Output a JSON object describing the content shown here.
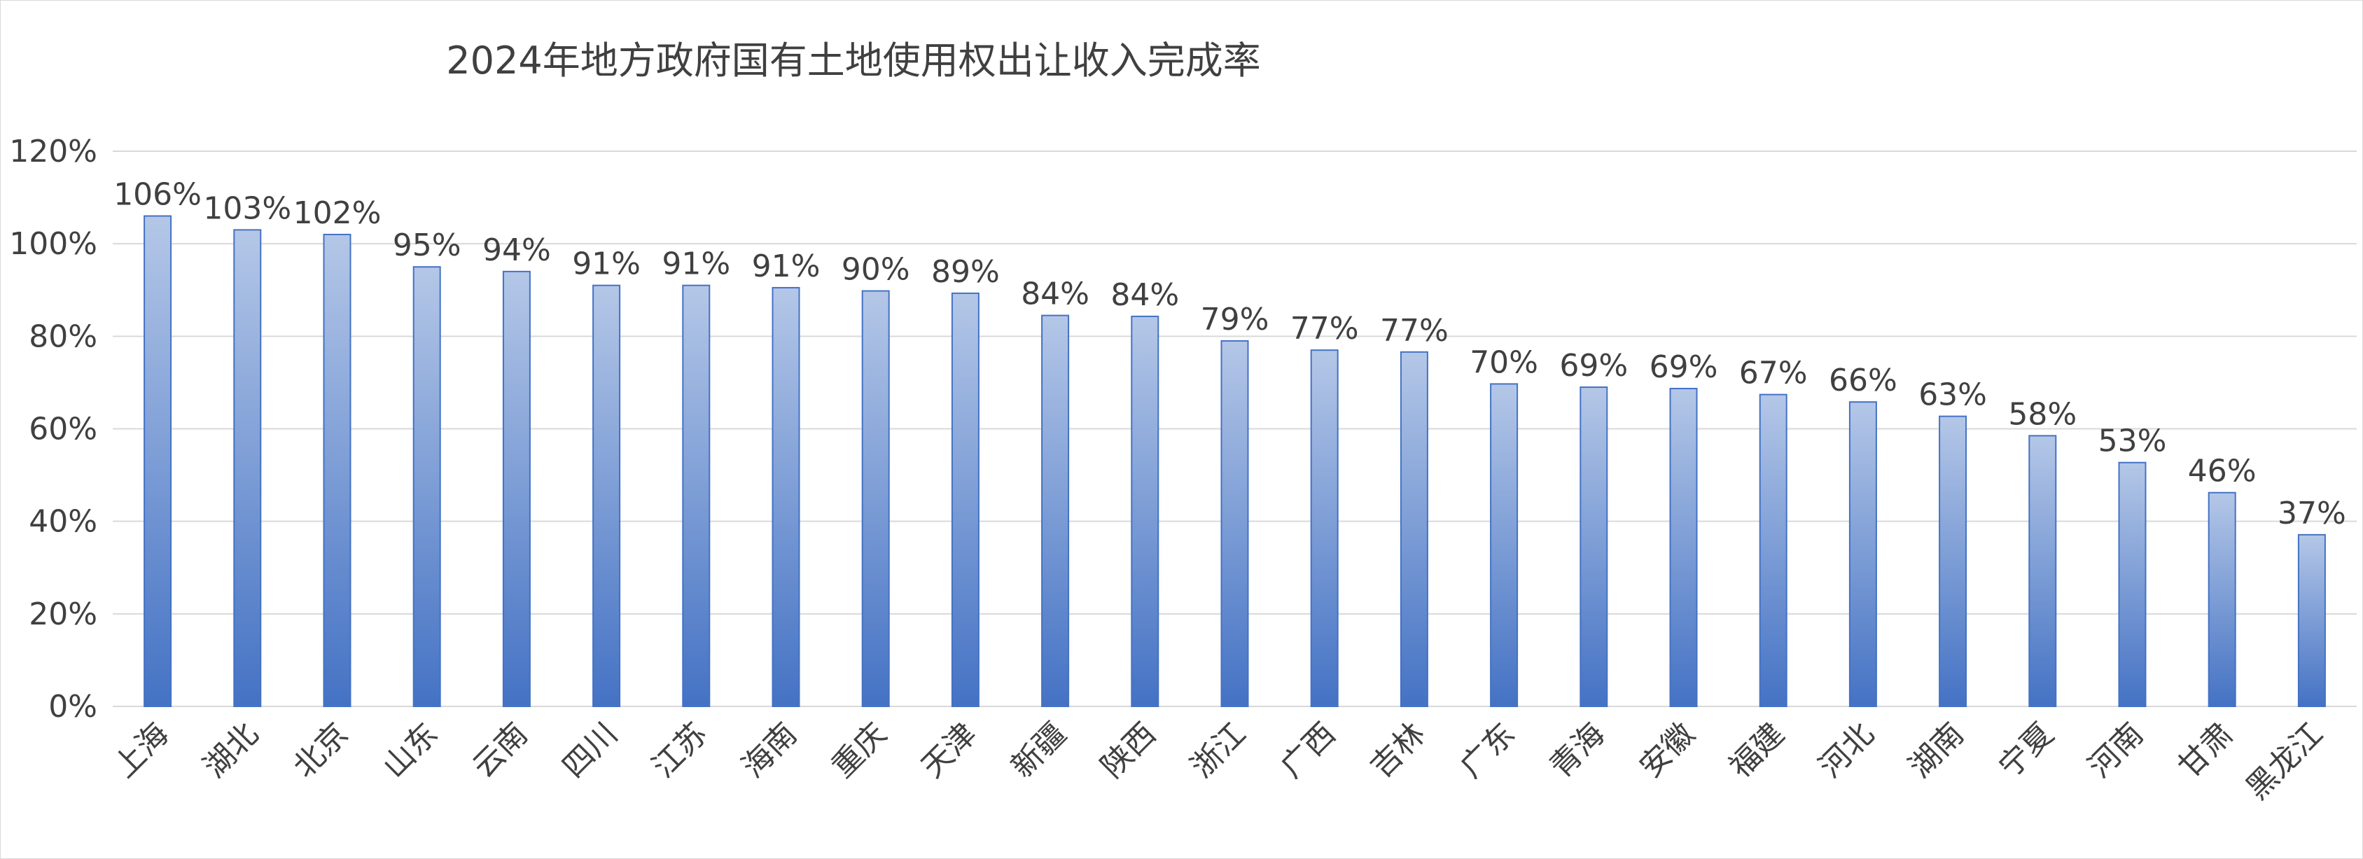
{
  "chart_data": {
    "type": "bar",
    "title": "2024年地方政府国有土地使用权出让收入完成率",
    "xlabel": "",
    "ylabel": "",
    "ylim": [
      0,
      1.2
    ],
    "y_ticks": [
      0,
      0.2,
      0.4,
      0.6,
      0.8,
      1.0,
      1.2
    ],
    "y_tick_labels": [
      "0%",
      "20%",
      "40%",
      "60%",
      "80%",
      "100%",
      "120%"
    ],
    "grid": true,
    "legend": "none",
    "categories": [
      "上海",
      "湖北",
      "北京",
      "山东",
      "云南",
      "四川",
      "江苏",
      "海南",
      "重庆",
      "天津",
      "新疆",
      "陕西",
      "浙江",
      "广西",
      "吉林",
      "广东",
      "青海",
      "安徽",
      "福建",
      "河北",
      "湖南",
      "宁夏",
      "河南",
      "甘肃",
      "黑龙江"
    ],
    "values": [
      1.06,
      1.03,
      1.02,
      0.95,
      0.94,
      0.91,
      0.91,
      0.905,
      0.898,
      0.893,
      0.845,
      0.843,
      0.79,
      0.77,
      0.766,
      0.697,
      0.69,
      0.687,
      0.674,
      0.658,
      0.627,
      0.585,
      0.527,
      0.462,
      0.371
    ],
    "data_labels": [
      "106%",
      "103%",
      "102%",
      "95%",
      "94%",
      "91%",
      "91%",
      "91%",
      "90%",
      "89%",
      "84%",
      "84%",
      "79%",
      "77%",
      "77%",
      "70%",
      "69%",
      "69%",
      "67%",
      "66%",
      "63%",
      "58%",
      "53%",
      "46%",
      "37%"
    ],
    "colors": {
      "bar_top": "#b4c7e7",
      "bar_bottom": "#4472c4",
      "bar_border": "#4472c4",
      "grid": "#d9d9d9",
      "text": "#404040"
    }
  }
}
